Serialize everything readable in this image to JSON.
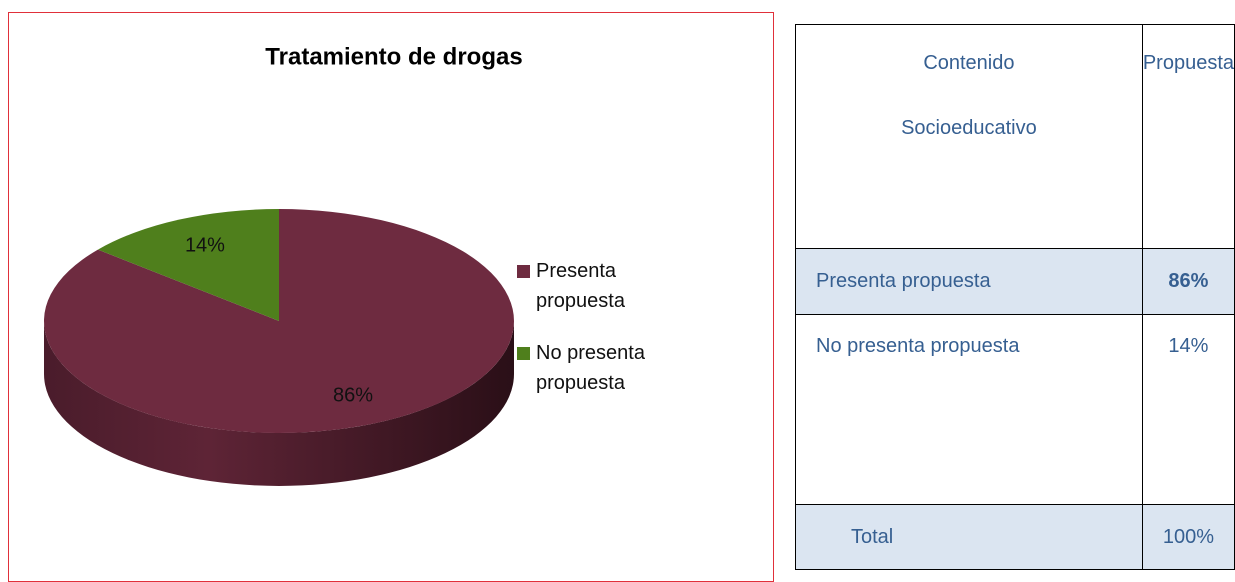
{
  "chart_data": {
    "type": "pie",
    "title": "Tratamiento de drogas",
    "series": [
      {
        "name": "Presenta propuesta",
        "color": "#6e2b40",
        "values": [
          86
        ],
        "value_labels": [
          "86%"
        ]
      },
      {
        "name": "No presenta propuesta",
        "color": "#4f7f1c",
        "values": [
          14
        ],
        "value_labels": [
          "14%"
        ]
      }
    ]
  },
  "table": {
    "header": [
      [
        "Contenido",
        "Socioeducativo"
      ],
      "Propuesta"
    ],
    "rows": [
      [
        "Presenta propuesta",
        "86%"
      ],
      [
        "No presenta propuesta",
        "14%"
      ],
      [
        "Total",
        "100%"
      ]
    ]
  }
}
